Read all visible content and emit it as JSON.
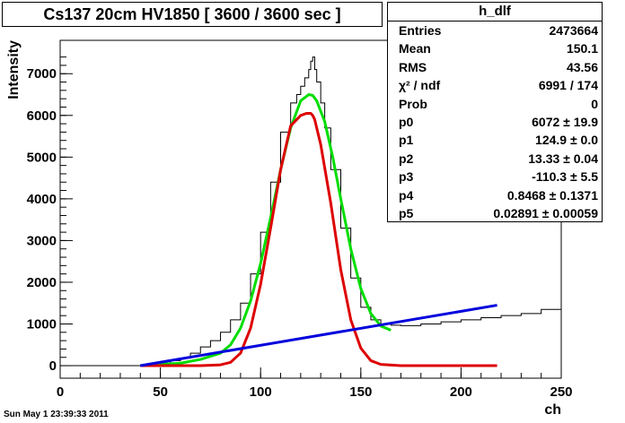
{
  "chart_data": {
    "type": "line",
    "title": "Cs137 20cm HV1850 [ 3600 / 3600 sec ]",
    "xlabel": "ch",
    "ylabel": "Intensity",
    "xlim": [
      0,
      250
    ],
    "ylim": [
      -300,
      7800
    ],
    "xticks": [
      0,
      50,
      100,
      150,
      200,
      250
    ],
    "yticks": [
      0,
      1000,
      2000,
      3000,
      4000,
      5000,
      6000,
      7000
    ],
    "grid": false,
    "histogram": {
      "name": "h_dlf",
      "x": [
        0,
        40,
        45,
        50,
        55,
        60,
        65,
        70,
        75,
        80,
        85,
        90,
        95,
        100,
        105,
        110,
        115,
        118,
        120,
        122,
        124,
        125,
        126,
        127,
        128,
        130,
        132,
        135,
        140,
        145,
        150,
        155,
        160,
        165,
        170,
        180,
        190,
        200,
        210,
        220,
        230,
        240,
        250
      ],
      "y": [
        0,
        0,
        20,
        60,
        120,
        180,
        300,
        450,
        600,
        800,
        1100,
        1500,
        2200,
        3200,
        4400,
        5600,
        6300,
        6500,
        6700,
        6900,
        7100,
        7300,
        7400,
        7100,
        6800,
        6300,
        5700,
        4700,
        3300,
        2100,
        1400,
        1100,
        1000,
        970,
        960,
        1000,
        1050,
        1100,
        1150,
        1200,
        1250,
        1350,
        1400
      ],
      "color": "#000000"
    },
    "series": [
      {
        "x": [
          40,
          60,
          70,
          80,
          85,
          90,
          95,
          100,
          105,
          110,
          115,
          120,
          124,
          126,
          128,
          132,
          136,
          140,
          145,
          150,
          155,
          160,
          165
        ],
        "values": [
          0,
          60,
          150,
          300,
          500,
          900,
          1550,
          2450,
          3550,
          4700,
          5700,
          6350,
          6500,
          6480,
          6350,
          5850,
          5000,
          4000,
          2800,
          1850,
          1250,
          950,
          850
        ],
        "color": "#00dd00"
      },
      {
        "x": [
          40,
          70,
          80,
          85,
          90,
          95,
          100,
          105,
          110,
          115,
          120,
          123,
          125,
          126,
          127,
          130,
          135,
          140,
          145,
          150,
          155,
          160,
          170,
          180,
          218
        ],
        "values": [
          0,
          0,
          20,
          80,
          300,
          900,
          1950,
          3300,
          4700,
          5750,
          6000,
          6050,
          6050,
          6000,
          5900,
          5300,
          3900,
          2300,
          1100,
          420,
          120,
          30,
          0,
          0,
          0
        ],
        "color": "#dd0000"
      },
      {
        "x": [
          40,
          218
        ],
        "values": [
          0,
          1450
        ],
        "color": "#0000dd"
      }
    ]
  },
  "stats": {
    "title": "h_dlf",
    "rows": [
      {
        "k": "Entries",
        "v": "2473664"
      },
      {
        "k": "Mean",
        "v": "150.1"
      },
      {
        "k": "RMS",
        "v": "43.56"
      },
      {
        "k": "χ² / ndf",
        "v": "6991 / 174"
      },
      {
        "k": "Prob",
        "v": "0"
      },
      {
        "k": "p0",
        "v": "6072 ± 19.9"
      },
      {
        "k": "p1",
        "v": "124.9 ± 0.0"
      },
      {
        "k": "p2",
        "v": "13.33 ± 0.04"
      },
      {
        "k": "p3",
        "v": "-110.3 ± 5.5"
      },
      {
        "k": "p4",
        "v": "0.8468 ± 0.1371"
      },
      {
        "k": "p5",
        "v": "0.02891 ± 0.00059"
      }
    ]
  },
  "footer": "Sun May  1 23:39:33 2011"
}
